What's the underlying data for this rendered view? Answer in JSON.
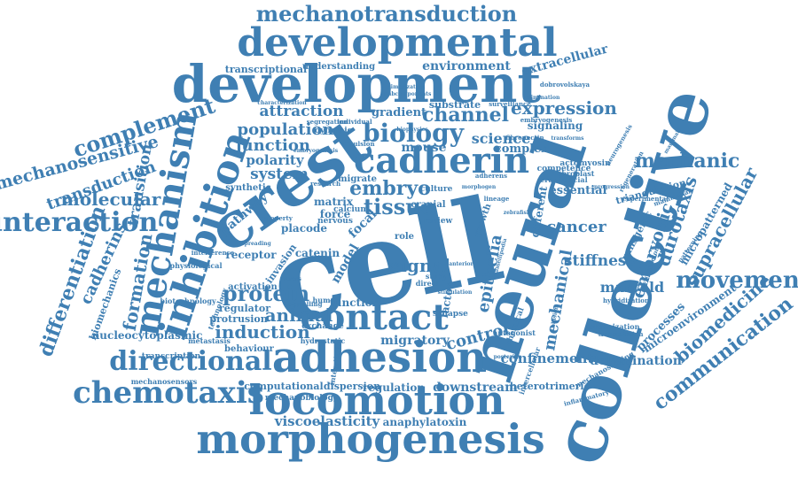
{
  "word_cloud": {
    "color": "#3f7fb3",
    "words": [
      "mechanotransduction",
      "developmental",
      "development",
      "neural",
      "collective",
      "cell",
      "crest",
      "cadherin",
      "inhibition",
      "mechanism",
      "adhesion",
      "contact",
      "locomotion",
      "morphogenesis",
      "chemotaxis",
      "directional",
      "interaction",
      "complement",
      "mechanosensitive",
      "transduction",
      "molecular",
      "differentiation",
      "cadherins",
      "formation",
      "biology",
      "channel",
      "expression",
      "attraction",
      "population",
      "junction",
      "polarity",
      "system",
      "embryo",
      "tissue",
      "mouse",
      "science",
      "complex",
      "mechanic",
      "durotaxis",
      "embryonic",
      "supracellular",
      "movement",
      "communication",
      "biomedicine",
      "cancer",
      "mechanical",
      "stiffness",
      "marveld",
      "delamination",
      "confinement",
      "epithelia",
      "signal",
      "protein",
      "animal",
      "induction",
      "migratory",
      "control",
      "regulation",
      "downstream",
      "computational",
      "dispersion",
      "viscoelasticity",
      "anaphylatoxin",
      "environment",
      "extracellular",
      "transcriptional",
      "understanding",
      "gradient",
      "substrate",
      "signaling",
      "catenin",
      "model",
      "factor",
      "pathway",
      "receptor",
      "invasion",
      "protrusion",
      "regulator",
      "behaviour",
      "matrix",
      "focal",
      "force",
      "placode",
      "synthetic",
      "role",
      "review",
      "essential",
      "transition",
      "transcription",
      "nucleocytoplasmic",
      "biomechanics",
      "mechanobiology",
      "heterotrimeric",
      "processes",
      "microenvironment",
      "organization",
      "triangulation",
      "micropatterned",
      "different",
      "transgenic",
      "activation",
      "cranial",
      "culture",
      "human",
      "direct",
      "study",
      "growth",
      "lineage",
      "migrate",
      "calcium",
      "nervous",
      "research",
      "dynamic",
      "individual",
      "physiological",
      "metastasis",
      "mechanosensors",
      "mechanosensing",
      "interference",
      "hydrostatic",
      "exchange",
      "function",
      "synapse",
      "antagonist",
      "chemical",
      "fibroblast",
      "competence",
      "actomyosin",
      "craniofacial",
      "embryogenesis",
      "dobrovolskaya",
      "surveillance",
      "elimination",
      "segregation",
      "fibronectin",
      "repulsion",
      "adherens",
      "transforms",
      "neurogenesis",
      "mammalian",
      "experimental",
      "hybridization",
      "transmission",
      "biotechnology",
      "technology",
      "property",
      "interstitial",
      "spreading",
      "stress",
      "zebrafish",
      "embryogenesis",
      "signalling",
      "characterization",
      "intercellular",
      "posterior",
      "anterior",
      "dimerization",
      "subcomponents",
      "regeneration",
      "progression",
      "inflammatory",
      "cytoskeleton",
      "patterning",
      "biophysics",
      "morphogen",
      "collision",
      "stimulation",
      "mammals",
      "lamellipodia"
    ]
  }
}
